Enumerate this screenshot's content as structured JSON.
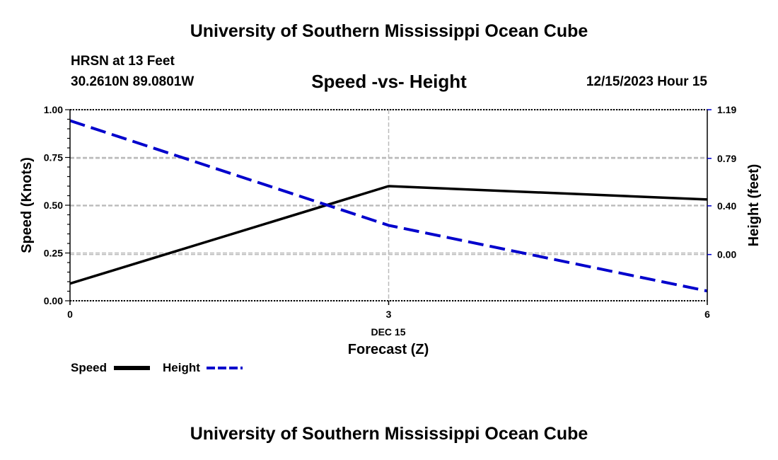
{
  "header": {
    "title": "University of Southern Mississippi Ocean Cube",
    "station": "HRSN at 13 Feet",
    "coordinates": "30.2610N  89.0801W",
    "datetime": "12/15/2023 Hour 15",
    "footer_title": "University of Southern Mississippi Ocean Cube"
  },
  "colors": {
    "speed": "#000000",
    "height": "#0000cc",
    "grid": "#bbbbbb"
  },
  "chart_data": {
    "type": "line",
    "title": "Speed -vs- Height",
    "xlabel": "Forecast (Z)",
    "date_label": "DEC 15",
    "x": [
      0,
      3,
      6
    ],
    "xlim": [
      0,
      6
    ],
    "x_ticks": [
      "0",
      "3",
      "6"
    ],
    "left_axis": {
      "label": "Speed (Knots)",
      "ylim": [
        0,
        1
      ],
      "ticks": [
        "0.00",
        "0.25",
        "0.50",
        "0.75",
        "1.00"
      ]
    },
    "right_axis": {
      "label": "Height (feet)",
      "ylim": [
        -0.38,
        1.19
      ],
      "ticks": [
        "0.00",
        "0.40",
        "0.79",
        "1.19"
      ]
    },
    "series": [
      {
        "name": "Speed",
        "axis": "left",
        "style": "solid",
        "values": [
          0.09,
          0.6,
          0.53
        ]
      },
      {
        "name": "Height",
        "axis": "right",
        "style": "dashed",
        "values": [
          1.1,
          0.24,
          -0.3
        ]
      }
    ],
    "legend": [
      "Speed",
      "Height"
    ],
    "legend_position": "bottom-left",
    "grid": true
  }
}
